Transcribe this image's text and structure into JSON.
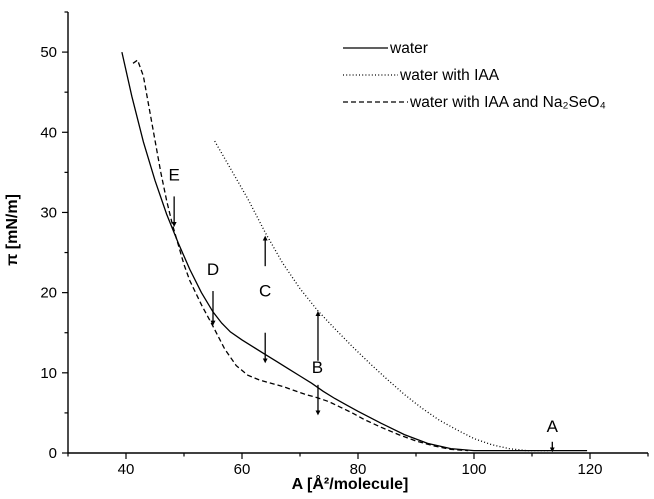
{
  "chart_data": {
    "type": "line",
    "xlabel": "A [Å²/molecule]",
    "ylabel": "π [mN/m]",
    "xlim": [
      30,
      130
    ],
    "ylim": [
      0,
      55
    ],
    "xticks": [
      40,
      60,
      80,
      100,
      120
    ],
    "yticks": [
      0,
      10,
      20,
      30,
      40,
      50
    ],
    "grid": false,
    "legend_position": "top-right",
    "series": [
      {
        "name": "water",
        "line_style": "solid",
        "points": [
          [
            39.3,
            50
          ],
          [
            41,
            44.5
          ],
          [
            43,
            38.8
          ],
          [
            45,
            34
          ],
          [
            47,
            29.8
          ],
          [
            49,
            26.2
          ],
          [
            51,
            22.9
          ],
          [
            53,
            20
          ],
          [
            55,
            17.6
          ],
          [
            56.5,
            16.2
          ],
          [
            58,
            15.1
          ],
          [
            60,
            14.1
          ],
          [
            62,
            13.2
          ],
          [
            64,
            12.3
          ],
          [
            66,
            11.4
          ],
          [
            68,
            10.5
          ],
          [
            70,
            9.6
          ],
          [
            72,
            8.7
          ],
          [
            74,
            7.7
          ],
          [
            76,
            6.8
          ],
          [
            78,
            6
          ],
          [
            80,
            5.2
          ],
          [
            84,
            3.7
          ],
          [
            88,
            2.3
          ],
          [
            92,
            1.2
          ],
          [
            96,
            0.55
          ],
          [
            100,
            0.3
          ],
          [
            110,
            0.3
          ],
          [
            119.5,
            0.3
          ]
        ]
      },
      {
        "name": "water with IAA",
        "line_style": "dotted",
        "points": [
          [
            55.3,
            38.9
          ],
          [
            58,
            35.5
          ],
          [
            61,
            31.7
          ],
          [
            64,
            27.5
          ],
          [
            67,
            23.7
          ],
          [
            70,
            20.5
          ],
          [
            73,
            17.8
          ],
          [
            76,
            15.5
          ],
          [
            79,
            13.3
          ],
          [
            82,
            11.2
          ],
          [
            85,
            9.2
          ],
          [
            88,
            7.3
          ],
          [
            91,
            5.6
          ],
          [
            94,
            4.1
          ],
          [
            97,
            2.9
          ],
          [
            100,
            1.8
          ],
          [
            103,
            1.05
          ],
          [
            106,
            0.55
          ],
          [
            109,
            0.3
          ],
          [
            113,
            0.3
          ]
        ]
      },
      {
        "name": "water with IAA and Na₂SeO₄",
        "line_style": "dashed",
        "points": [
          [
            41.2,
            48.6
          ],
          [
            42,
            49
          ],
          [
            43,
            47
          ],
          [
            44,
            43
          ],
          [
            45,
            39
          ],
          [
            46,
            35
          ],
          [
            47,
            31.5
          ],
          [
            48,
            28.5
          ],
          [
            49,
            26
          ],
          [
            50,
            23.5
          ],
          [
            51,
            21.5
          ],
          [
            53,
            18.5
          ],
          [
            55,
            15.8
          ],
          [
            57,
            13
          ],
          [
            59,
            10.9
          ],
          [
            61,
            9.7
          ],
          [
            63,
            9.1
          ],
          [
            65,
            8.7
          ],
          [
            67,
            8.3
          ],
          [
            69,
            7.8
          ],
          [
            71,
            7.3
          ],
          [
            73,
            6.9
          ],
          [
            75,
            6.4
          ],
          [
            77,
            5.7
          ],
          [
            79,
            5
          ],
          [
            81,
            4.2
          ],
          [
            84,
            3.2
          ],
          [
            87,
            2.3
          ],
          [
            90,
            1.5
          ],
          [
            93,
            0.9
          ],
          [
            96,
            0.45
          ],
          [
            99,
            0.3
          ]
        ]
      }
    ],
    "annotations": [
      {
        "label": "A",
        "x": 113.5,
        "y": 2.6
      },
      {
        "label": "B",
        "x": 73,
        "y": 10
      },
      {
        "label": "C",
        "x": 64,
        "y": 19.5
      },
      {
        "label": "D",
        "x": 55,
        "y": 22.2
      },
      {
        "label": "E",
        "x": 48.3,
        "y": 34
      }
    ],
    "arrows": [
      {
        "x": 113.5,
        "y_from": 1.4,
        "y_to": 0.4
      },
      {
        "x": 73.1,
        "y_from": 11.5,
        "y_to": 17.4
      },
      {
        "x": 73.1,
        "y_from": 8.5,
        "y_to": 5
      },
      {
        "x": 64,
        "y_from": 23.3,
        "y_to": 26.8
      },
      {
        "x": 64,
        "y_from": 15,
        "y_to": 11.5
      },
      {
        "x": 55,
        "y_from": 20.2,
        "y_to": 16.2
      },
      {
        "x": 48.3,
        "y_from": 32,
        "y_to": 28.5
      }
    ]
  }
}
